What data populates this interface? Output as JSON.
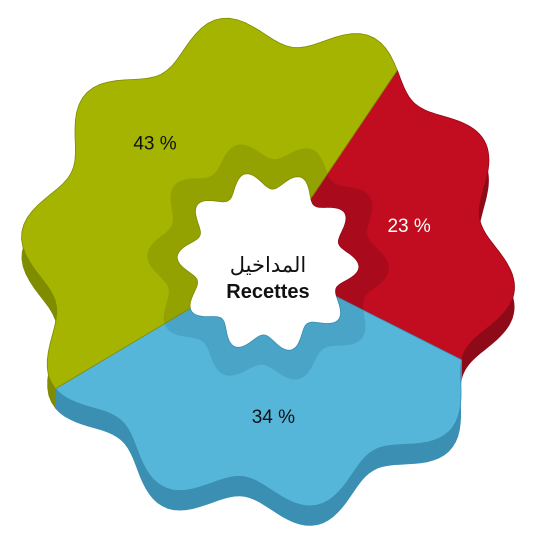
{
  "chart_data": {
    "type": "pie",
    "variant": "3d-donut",
    "center_label_ar": "المداخيل",
    "center_label_fr": "Recettes",
    "slices": [
      {
        "label": "23 %",
        "value": 23,
        "color": "#c20c1f",
        "side_color": "#8f0a18"
      },
      {
        "label": "34 %",
        "value": 34,
        "color": "#56b6da",
        "side_color": "#3a8fb2"
      },
      {
        "label": "43 %",
        "value": 43,
        "color": "#a4b400",
        "side_color": "#7f8c00"
      }
    ],
    "legend": "none",
    "grid": false
  }
}
